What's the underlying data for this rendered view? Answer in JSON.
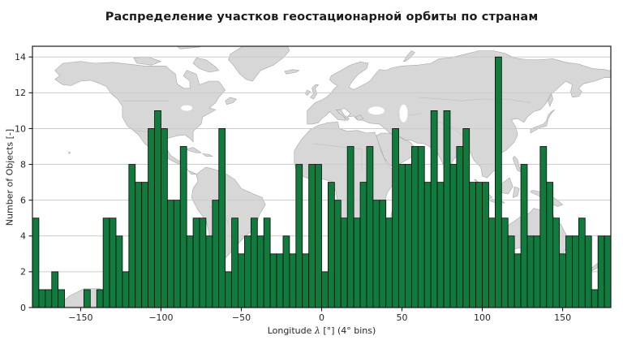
{
  "title": "Распределение участков геостационарной орбиты по странам",
  "chart_data": {
    "type": "bar",
    "title": "Распределение участков геостационарной орбиты по странам",
    "xlabel": "Longitude λ [°] (4° bins)",
    "xlabel_parts": {
      "prefix": "Longitude ",
      "lambda": "λ",
      "suffix": " [°] (4° bins)"
    },
    "ylabel": "Number of Objects [-]",
    "bin_width_deg": 4,
    "bin_start_deg": -180,
    "xlim": [
      -180,
      180
    ],
    "ylim": [
      0,
      14.6
    ],
    "x_ticks": [
      -150,
      -100,
      -50,
      0,
      50,
      100,
      150
    ],
    "y_ticks": [
      0,
      2,
      4,
      6,
      8,
      10,
      12,
      14
    ],
    "grid": "horizontal gridlines, drawn over map, under bars",
    "legend": "none",
    "background": "world map, light gray land on white ocean",
    "values": [
      5,
      1,
      1,
      2,
      1,
      0,
      0,
      0,
      1,
      0,
      1,
      5,
      5,
      4,
      2,
      8,
      7,
      7,
      10,
      11,
      10,
      6,
      6,
      9,
      4,
      5,
      5,
      4,
      6,
      10,
      2,
      5,
      3,
      4,
      5,
      4,
      5,
      3,
      3,
      4,
      3,
      8,
      3,
      8,
      8,
      2,
      7,
      6,
      5,
      9,
      5,
      7,
      9,
      6,
      6,
      5,
      10,
      8,
      8,
      9,
      9,
      7,
      11,
      7,
      11,
      8,
      9,
      10,
      7,
      7,
      7,
      5,
      14,
      5,
      4,
      3,
      8,
      4,
      4,
      9,
      7,
      5,
      3,
      4,
      4,
      5,
      4,
      1,
      4,
      4
    ],
    "colors": {
      "bar_fill": "#117a3d",
      "bar_edge": "#0a0a0a",
      "land": "#d7d7d7",
      "land_border": "#a6a6a6",
      "country_border": "#b9b9b9",
      "gridline": "#cbcbcb",
      "spine": "#1a1a1a",
      "tick_text": "#262626",
      "title_color": "#1c1c1c"
    }
  }
}
